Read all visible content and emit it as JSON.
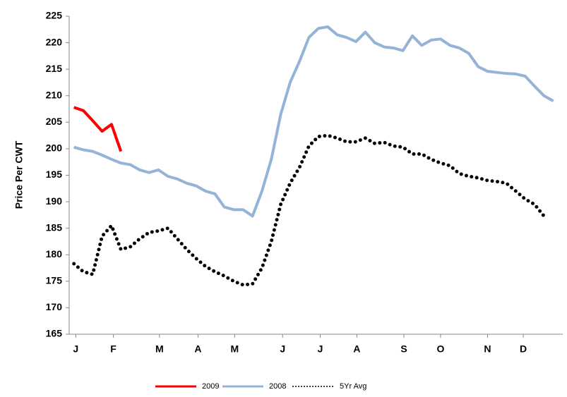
{
  "chart_data": {
    "type": "line",
    "y_label": "Price Per CWT",
    "x": [
      1,
      2,
      3,
      4,
      5,
      6,
      7,
      8,
      9,
      10,
      11,
      12,
      13,
      14,
      15,
      16,
      17,
      18,
      19,
      20,
      21,
      22,
      23,
      24,
      25,
      26,
      27,
      28,
      29,
      30,
      31,
      32,
      33,
      34,
      35,
      36,
      37,
      38,
      39,
      40,
      41,
      42,
      43,
      44,
      45,
      46,
      47,
      48,
      49,
      50,
      51,
      52
    ],
    "xlim": [
      0.5,
      53
    ],
    "xticks": [
      {
        "value": 1.2,
        "label": "J"
      },
      {
        "value": 5.2,
        "label": "F"
      },
      {
        "value": 10.1,
        "label": "M"
      },
      {
        "value": 14.2,
        "label": "A"
      },
      {
        "value": 18.1,
        "label": "M"
      },
      {
        "value": 23.2,
        "label": "J"
      },
      {
        "value": 27.2,
        "label": "J"
      },
      {
        "value": 31.1,
        "label": "A"
      },
      {
        "value": 36.1,
        "label": "S"
      },
      {
        "value": 40.0,
        "label": "O"
      },
      {
        "value": 45.0,
        "label": "N"
      },
      {
        "value": 48.8,
        "label": "D"
      }
    ],
    "ylim": [
      165,
      225
    ],
    "yticks": [
      165,
      170,
      175,
      180,
      185,
      190,
      195,
      200,
      205,
      210,
      215,
      220,
      225
    ],
    "grid": false,
    "legend": "bottom",
    "series": [
      {
        "name": "2009",
        "color": "#ff0000",
        "style": "solid",
        "values": [
          207.8,
          207.2,
          205.3,
          203.3,
          204.6,
          199.5,
          null,
          null,
          null,
          null,
          null,
          null,
          null,
          null,
          null,
          null,
          null,
          null,
          null,
          null,
          null,
          null,
          null,
          null,
          null,
          null,
          null,
          null,
          null,
          null,
          null,
          null,
          null,
          null,
          null,
          null,
          null,
          null,
          null,
          null,
          null,
          null,
          null,
          null,
          null,
          null,
          null,
          null,
          null,
          null,
          null,
          null
        ]
      },
      {
        "name": "2008",
        "color": "#95b3d7",
        "style": "solid",
        "values": [
          200.3,
          199.8,
          199.5,
          198.8,
          198,
          197.3,
          197,
          196,
          195.5,
          196,
          194.8,
          194.3,
          193.5,
          193,
          192,
          191.5,
          189,
          188.5,
          188.5,
          187.3,
          192,
          198,
          206.5,
          212.5,
          216.5,
          221,
          222.7,
          223,
          221.5,
          221,
          220.2,
          222,
          220,
          219.2,
          219,
          218.5,
          221.3,
          219.5,
          220.5,
          220.7,
          219.5,
          219,
          218,
          215.5,
          214.6,
          214.4,
          214.2,
          214.1,
          213.7,
          211.8,
          210,
          209
        ]
      },
      {
        "name": "5Yr Avg",
        "color": "#000000",
        "style": "dotted",
        "values": [
          178.3,
          176.8,
          176.3,
          183.5,
          185.5,
          181,
          181.5,
          183,
          184.2,
          184.5,
          185,
          183,
          181,
          179.3,
          177.8,
          176.8,
          176,
          175,
          174.3,
          174.5,
          177.5,
          182.5,
          189.5,
          193.5,
          196.5,
          200.5,
          202.3,
          202.5,
          202,
          201.3,
          201.3,
          202,
          201,
          201.2,
          200.5,
          200.3,
          199,
          199,
          198,
          197.3,
          196.8,
          195.3,
          194.8,
          194.5,
          194,
          193.8,
          193.5,
          192,
          190.5,
          189.5,
          187.3,
          null
        ]
      }
    ]
  }
}
